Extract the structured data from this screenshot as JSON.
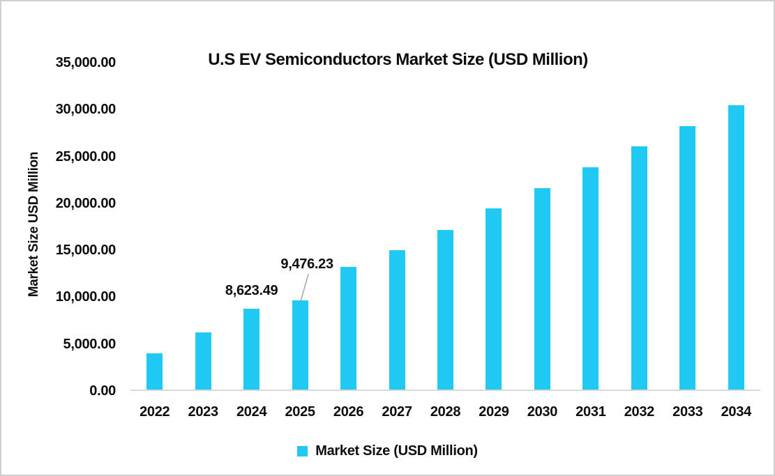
{
  "chart_data": {
    "type": "bar",
    "title": "U.S EV Semiconductors Market Size (USD Million)",
    "xlabel": "",
    "ylabel": "Market Size USD Million",
    "categories": [
      "2022",
      "2023",
      "2024",
      "2025",
      "2026",
      "2027",
      "2028",
      "2029",
      "2030",
      "2031",
      "2032",
      "2033",
      "2034"
    ],
    "values": [
      3900,
      6100,
      8623.49,
      9476.23,
      13100,
      14850,
      17050,
      19300,
      21450,
      23700,
      25950,
      28100,
      30300
    ],
    "ylim": [
      0,
      35000
    ],
    "ytick_step": 5000,
    "ytick_labels_top_to_bottom": [
      "35,000.00",
      "30,000.00",
      "25,000.00",
      "20,000.00",
      "15,000.00",
      "10,000.00",
      "5,000.00",
      "0.00"
    ],
    "grid": false,
    "legend_position": "bottom",
    "legend": {
      "entries": [
        {
          "label": "Market Size (USD Million)",
          "color": "#1fc9f2"
        }
      ]
    },
    "annotations": [
      {
        "category": "2024",
        "label": "8,623.49",
        "has_leader_line": false
      },
      {
        "category": "2025",
        "label": "9,476.23",
        "has_leader_line": true
      }
    ],
    "colors": {
      "bar": "#1fc9f2",
      "axis_line": "#d9d9d9",
      "text": "#0d0d0d",
      "leader_line": "#a6a6a6",
      "frame_border": "#cfcfcf",
      "background": "#ffffff"
    }
  }
}
